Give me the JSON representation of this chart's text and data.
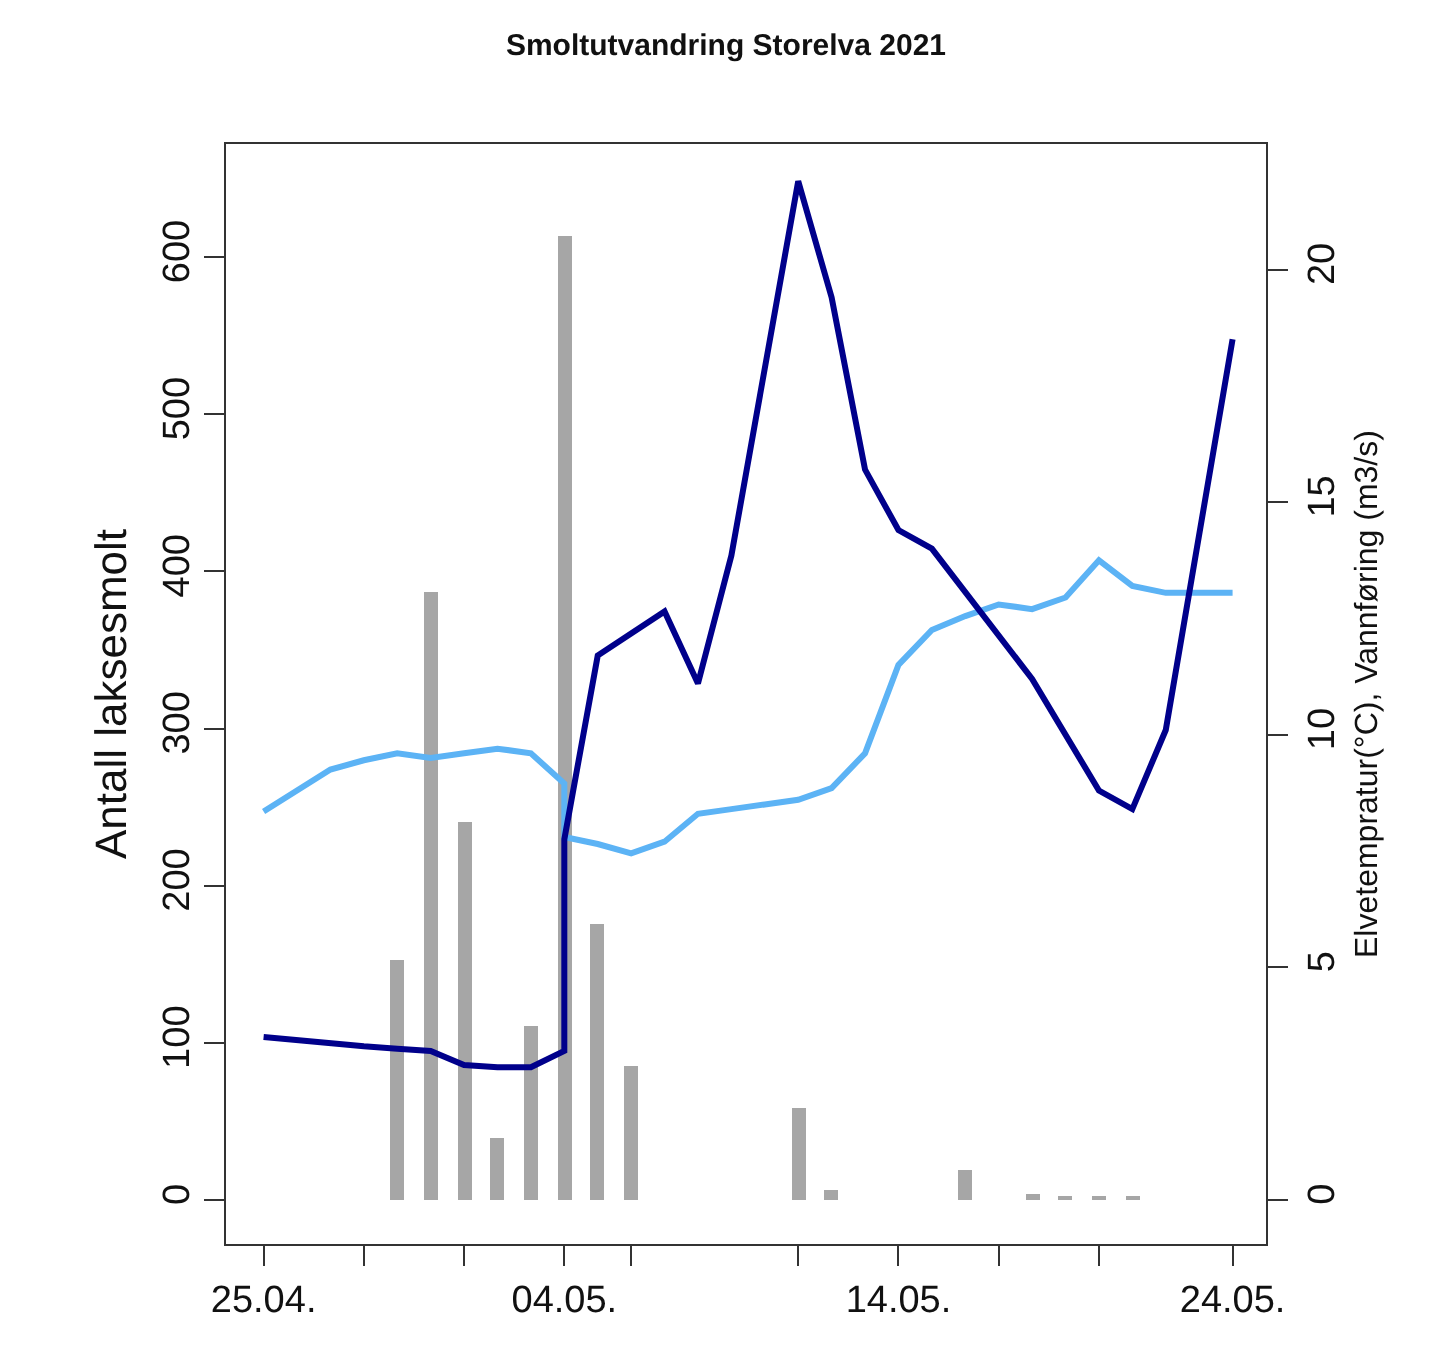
{
  "chart_data": {
    "type": "bar",
    "title": "Smoltutvandring Storelva 2021",
    "ylabel": "Antall laksesmolt",
    "y2label": "Elvetempratur(°C), Vannføring (m3/s)",
    "xlim": [
      "2021-04-23T21:00",
      "2021-05-25"
    ],
    "xticks": [
      {
        "value": "2021-04-25",
        "label": "25.04."
      },
      {
        "value": "2021-04-28",
        "label": null
      },
      {
        "value": "2021-05-01",
        "label": null
      },
      {
        "value": "2021-05-04",
        "label": "04.05."
      },
      {
        "value": "2021-05-06",
        "label": null
      },
      {
        "value": "2021-05-11",
        "label": null
      },
      {
        "value": "2021-05-14",
        "label": "14.05."
      },
      {
        "value": "2021-05-17",
        "label": null
      },
      {
        "value": "2021-05-20",
        "label": null
      },
      {
        "value": "2021-05-24",
        "label": "24.05."
      }
    ],
    "ylim": [
      -28,
      672
    ],
    "yticks": [
      0,
      100,
      200,
      300,
      400,
      500,
      600
    ],
    "y2lim": [
      -0.95,
      22.7
    ],
    "y2ticks": [
      0,
      5,
      10,
      15,
      20
    ],
    "series": [
      {
        "color": "#a6a6a6",
        "x": [
          "2021-04-29",
          "2021-04-30",
          "2021-05-01",
          "2021-05-02",
          "2021-05-03",
          "2021-05-04",
          "2021-05-05",
          "2021-05-06",
          "2021-05-11",
          "2021-05-12",
          "2021-05-16",
          "2021-05-18",
          "2021-05-19",
          "2021-05-20",
          "2021-05-21"
        ],
        "values": [
          153,
          387,
          241,
          39,
          111,
          614,
          176,
          85,
          58,
          7,
          19,
          4,
          3,
          2,
          3
        ]
      },
      {
        "type": "line",
        "axis": "y2",
        "color": "#5cb3f5",
        "x": [
          "2021-04-25",
          "2021-04-26",
          "2021-04-27",
          "2021-04-28",
          "2021-04-29",
          "2021-04-30",
          "2021-05-01",
          "2021-05-02",
          "2021-05-03",
          "2021-05-04",
          "2021-05-04",
          "2021-05-05",
          "2021-05-06",
          "2021-05-07",
          "2021-05-08",
          "2021-05-09",
          "2021-05-10",
          "2021-05-11",
          "2021-05-12",
          "2021-05-13",
          "2021-05-14",
          "2021-05-15",
          "2021-05-16",
          "2021-05-17",
          "2021-05-18",
          "2021-05-19",
          "2021-05-20",
          "2021-05-21",
          "2021-05-22",
          "2021-05-23",
          "2021-05-24"
        ],
        "values": [
          8.35,
          8.8,
          9.25,
          9.45,
          9.6,
          9.5,
          9.6,
          9.7,
          9.6,
          8.95,
          7.8,
          7.65,
          7.45,
          7.7,
          8.3,
          8.4,
          8.5,
          8.6,
          8.85,
          9.6,
          11.5,
          12.25,
          12.55,
          12.8,
          12.7,
          12.95,
          13.75,
          13.2,
          13.05,
          13.05,
          13.05
        ]
      },
      {
        "type": "line",
        "axis": "y2",
        "color": "#00008b",
        "x": [
          "2021-04-25",
          "2021-04-28",
          "2021-04-29",
          "2021-04-30",
          "2021-05-01",
          "2021-05-02",
          "2021-05-03",
          "2021-05-04",
          "2021-05-04",
          "2021-05-05",
          "2021-05-07",
          "2021-05-08",
          "2021-05-09",
          "2021-05-11",
          "2021-05-12",
          "2021-05-13",
          "2021-05-14",
          "2021-05-15",
          "2021-05-18",
          "2021-05-20",
          "2021-05-21",
          "2021-05-22",
          "2021-05-24"
        ],
        "values": [
          3.5,
          3.3,
          3.25,
          3.2,
          2.9,
          2.85,
          2.85,
          3.2,
          7.75,
          11.7,
          12.65,
          11.1,
          13.85,
          21.9,
          19.4,
          15.7,
          14.4,
          14.0,
          11.2,
          8.8,
          8.4,
          10.1,
          18.5
        ]
      }
    ]
  }
}
